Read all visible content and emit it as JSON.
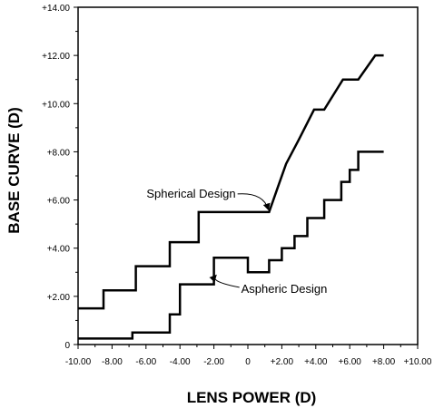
{
  "chart_data": {
    "type": "line",
    "xlabel": "LENS POWER (D)",
    "ylabel": "BASE CURVE (D)",
    "xlim": [
      -10,
      10
    ],
    "ylim": [
      0,
      14
    ],
    "x_ticks": [
      "-10.00",
      "-8.00",
      "-6.00",
      "-4.00",
      "-2.00",
      "0",
      "+2.00",
      "+4.00",
      "+6.00",
      "+8.00",
      "+10.00"
    ],
    "y_ticks": [
      "0",
      "+2.00",
      "+4.00",
      "+6.00",
      "+8.00",
      "+10.00",
      "+12.00",
      "+14.00"
    ],
    "grid": false,
    "legend": "none",
    "series": [
      {
        "name": "Spherical Design",
        "x": [
          -10,
          -8.5,
          -8.5,
          -6.6,
          -6.6,
          -4.6,
          -4.6,
          -2.9,
          -2.9,
          1.25,
          1.25,
          1.75,
          1.75,
          2.25,
          2.25,
          3.0,
          3.0,
          3.9,
          3.9,
          4.5,
          4.5,
          5.6,
          5.6,
          6.5,
          6.5,
          7.5,
          7.5,
          8.0
        ],
        "y": [
          1.5,
          1.5,
          2.25,
          2.25,
          3.25,
          3.25,
          4.25,
          4.25,
          5.5,
          5.5,
          5.5,
          6.5,
          6.5,
          7.5,
          7.5,
          8.5,
          8.5,
          9.75,
          9.75,
          9.75,
          9.75,
          11.0,
          11.0,
          11.0,
          11.0,
          12.0,
          12.0,
          12.0
        ]
      },
      {
        "name": "Aspheric Design",
        "x": [
          -10,
          -6.8,
          -6.8,
          -5.5,
          -5.5,
          -4.6,
          -4.6,
          -4.0,
          -4.0,
          -3.4,
          -3.4,
          -2.0,
          -2.0,
          -1.6,
          -1.6,
          0,
          0,
          0.4,
          0.4,
          1.25,
          1.25,
          2.0,
          2.0,
          2.75,
          2.75,
          3.5,
          3.5,
          4.0,
          4.0,
          4.5,
          4.5,
          5.0,
          5.0,
          5.5,
          5.5,
          6.0,
          6.0,
          6.5,
          6.5,
          7.0,
          7.0,
          7.5,
          7.5,
          8.0
        ],
        "y": [
          0.25,
          0.25,
          0.5,
          0.5,
          0.5,
          0.5,
          1.25,
          1.25,
          2.5,
          2.5,
          2.5,
          2.5,
          3.6,
          3.6,
          3.6,
          3.6,
          3.0,
          3.0,
          3.0,
          3.0,
          3.5,
          3.5,
          4.0,
          4.0,
          4.5,
          4.5,
          5.25,
          5.25,
          5.25,
          5.25,
          6.0,
          6.0,
          6.0,
          6.0,
          6.75,
          6.75,
          7.25,
          7.25,
          8.0,
          8.0,
          8.0,
          8.0,
          8.0,
          8.0
        ]
      }
    ],
    "annotations": [
      {
        "text": "Spherical Design",
        "x": -0.5,
        "y": 6.1,
        "arrow_to": [
          1.2,
          5.55
        ]
      },
      {
        "text": "Aspheric Design",
        "x": -0.5,
        "y": 2.15,
        "arrow_to": [
          -1.9,
          3.0
        ]
      }
    ]
  }
}
